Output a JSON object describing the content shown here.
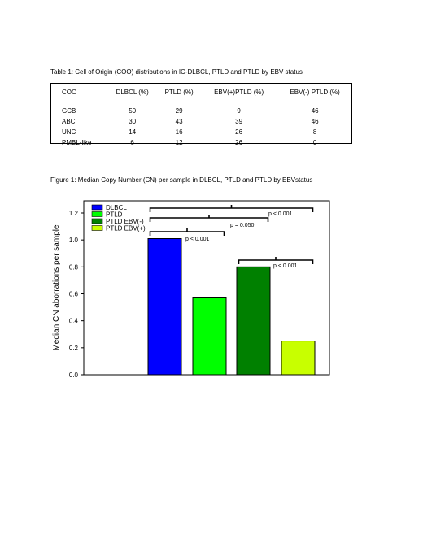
{
  "table": {
    "caption": "Table 1: Cell of Origin (COO) distributions in IC-DLBCL, PTLD and PTLD by EBV status",
    "headers": [
      "COO",
      "DLBCL (%)",
      "PTLD (%)",
      "EBV(+)PTLD (%)",
      "EBV(-) PTLD (%)"
    ],
    "rows": [
      [
        "GCB",
        "50",
        "29",
        "9",
        "46"
      ],
      [
        "ABC",
        "30",
        "43",
        "39",
        "46"
      ],
      [
        "UNC",
        "14",
        "16",
        "26",
        "8"
      ],
      [
        "PMBL-like",
        "6",
        "12",
        "26",
        "0"
      ]
    ]
  },
  "figure": {
    "caption": "Figure 1:  Median Copy Number (CN) per sample in DLBCL, PTLD and PTLD by EBVstatus"
  },
  "chart_data": {
    "type": "bar",
    "ylabel": "Median CN aborrations per sample",
    "ylim": [
      0,
      1.2
    ],
    "yticks": [
      "0.0",
      "0.2",
      "0.4",
      "0.6",
      "0.8",
      "1.0",
      "1.2"
    ],
    "grid": false,
    "legend_position": "top-left",
    "series": [
      {
        "name": "DLBCL",
        "values": [
          1.01
        ],
        "color": "#0000ff"
      },
      {
        "name": "PTLD",
        "values": [
          0.57
        ],
        "color": "#00ff00"
      },
      {
        "name": "PTLD EBV(-)",
        "values": [
          0.8
        ],
        "color": "#008000"
      },
      {
        "name": "PTLD EBV(+)",
        "values": [
          0.25
        ],
        "color": "#c8ff00"
      }
    ],
    "annotations": [
      {
        "text": "p < 0.001",
        "from": "DLBCL",
        "to": "PTLD EBV(+)"
      },
      {
        "text": "p = 0.050",
        "from": "DLBCL",
        "to": "PTLD EBV(-)"
      },
      {
        "text": "p < 0.001",
        "from": "DLBCL",
        "to": "PTLD"
      },
      {
        "text": "p < 0.001",
        "from": "PTLD EBV(-)",
        "to": "PTLD EBV(+)"
      }
    ]
  }
}
